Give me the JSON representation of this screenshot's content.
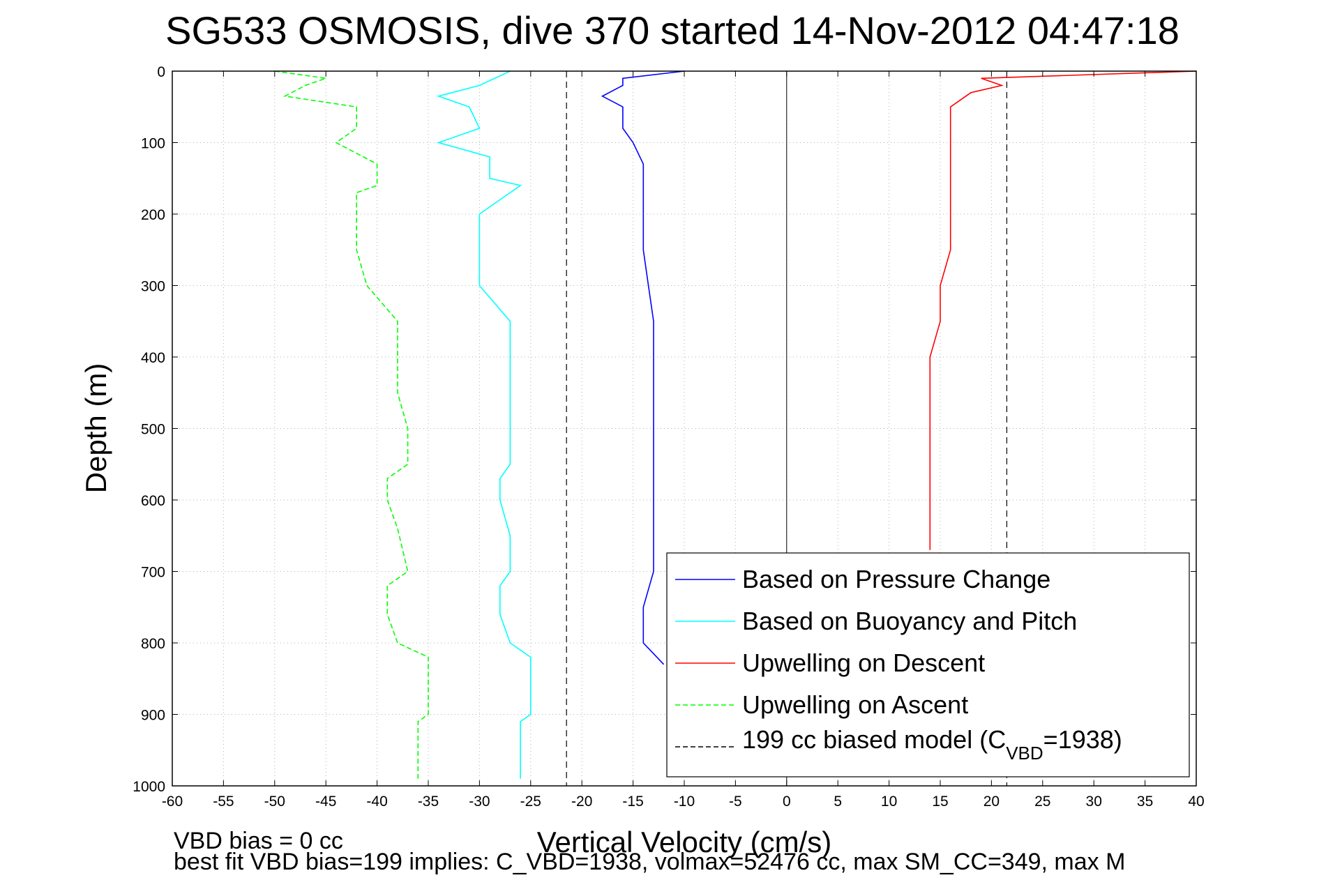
{
  "chart_data": {
    "type": "line",
    "title": "SG533 OSMOSIS, dive 370 started 14-Nov-2012 04:47:18",
    "xlabel": "Vertical Velocity (cm/s)",
    "ylabel": "Depth (m)",
    "xlim": [
      -60,
      40
    ],
    "ylim": [
      1000,
      0
    ],
    "y_reversed": true,
    "grid": true,
    "legend_position": "bottom-right",
    "xticks": [
      -60,
      -55,
      -50,
      -45,
      -40,
      -35,
      -30,
      -25,
      -20,
      -15,
      -10,
      -5,
      0,
      5,
      10,
      15,
      20,
      25,
      30,
      35,
      40
    ],
    "yticks": [
      0,
      100,
      200,
      300,
      400,
      500,
      600,
      700,
      800,
      900,
      1000
    ],
    "series": [
      {
        "name": "Based on Pressure Change",
        "color": "#0000ff",
        "style": "solid",
        "depth": [
          0,
          10,
          20,
          35,
          50,
          80,
          100,
          130,
          160,
          200,
          250,
          300,
          350,
          400,
          450,
          500,
          550,
          600,
          650,
          700,
          750,
          800,
          830
        ],
        "velocity": [
          -10,
          -16,
          -16,
          -18,
          -16,
          -16,
          -15,
          -14,
          -14,
          -14,
          -14,
          -13.5,
          -13,
          -13,
          -13,
          -13,
          -13,
          -13,
          -13,
          -13,
          -14,
          -14,
          -12
        ]
      },
      {
        "name": "Based on Buoyancy and Pitch",
        "color": "#00ffff",
        "style": "solid",
        "depth": [
          0,
          20,
          35,
          50,
          80,
          100,
          120,
          150,
          160,
          200,
          250,
          300,
          350,
          400,
          450,
          500,
          550,
          570,
          600,
          650,
          700,
          720,
          760,
          800,
          820,
          860,
          900,
          910,
          950,
          990
        ],
        "velocity": [
          -27,
          -30,
          -34,
          -31,
          -30,
          -34,
          -29,
          -29,
          -26,
          -30,
          -30,
          -30,
          -27,
          -27,
          -27,
          -27,
          -27,
          -28,
          -28,
          -27,
          -27,
          -28,
          -28,
          -27,
          -25,
          -25,
          -25,
          -26,
          -26,
          -26
        ]
      },
      {
        "name": "Upwelling on Descent",
        "color": "#ff0000",
        "style": "solid",
        "depth": [
          0,
          10,
          20,
          30,
          50,
          80,
          100,
          130,
          160,
          200,
          250,
          300,
          350,
          400,
          450,
          500,
          550,
          600,
          650,
          670
        ],
        "velocity": [
          40,
          19,
          21,
          18,
          16,
          16,
          16,
          16,
          16,
          16,
          16,
          15,
          15,
          14,
          14,
          14,
          14,
          14,
          14,
          14
        ]
      },
      {
        "name": "Upwelling on Ascent",
        "color": "#00ff00",
        "style": "dashed",
        "depth": [
          0,
          10,
          20,
          35,
          50,
          80,
          100,
          130,
          160,
          170,
          200,
          250,
          300,
          350,
          400,
          450,
          500,
          550,
          570,
          600,
          640,
          700,
          720,
          760,
          800,
          820,
          860,
          900,
          910,
          950,
          990
        ],
        "velocity": [
          -50,
          -45,
          -47,
          -49,
          -42,
          -42,
          -44,
          -40,
          -40,
          -42,
          -42,
          -42,
          -41,
          -38,
          -38,
          -38,
          -37,
          -37,
          -39,
          -39,
          -38,
          -37,
          -39,
          -39,
          -38,
          -35,
          -35,
          -35,
          -36,
          -36,
          -36
        ]
      }
    ],
    "model_bounds": {
      "name": "199 cc biased model (C",
      "sub": "VBD",
      "suffix": "=1938)",
      "color": "#000000",
      "style": "dashed",
      "x_values": [
        -21.5,
        21.5
      ]
    },
    "zero_line": 0
  },
  "footer": {
    "line1": "VBD bias = 0 cc",
    "line2": "best fit VBD bias=199 implies: C_VBD=1938, volmax=52476 cc, max SM_CC=349, max M"
  }
}
